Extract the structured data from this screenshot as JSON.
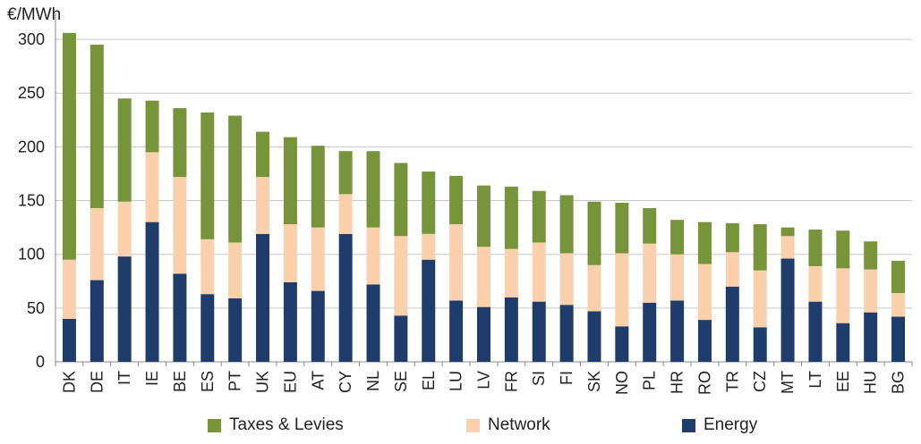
{
  "chart_data": {
    "type": "bar",
    "stacked": true,
    "title": "",
    "ylabel": "€/MWh",
    "xlabel": "",
    "ylim": [
      0,
      320
    ],
    "yticks": [
      0,
      50,
      100,
      150,
      200,
      250,
      300
    ],
    "grid": true,
    "legend_position": "bottom",
    "categories": [
      "DK",
      "DE",
      "IT",
      "IE",
      "BE",
      "ES",
      "PT",
      "UK",
      "EU",
      "AT",
      "CY",
      "NL",
      "SE",
      "EL",
      "LU",
      "LV",
      "FR",
      "SI",
      "FI",
      "SK",
      "NO",
      "PL",
      "HR",
      "RO",
      "TR",
      "CZ",
      "MT",
      "LT",
      "EE",
      "HU",
      "BG"
    ],
    "series": [
      {
        "name": "Energy",
        "color": "#1f3c6b",
        "values": [
          40,
          76,
          98,
          130,
          82,
          63,
          59,
          119,
          74,
          66,
          119,
          72,
          43,
          95,
          57,
          51,
          60,
          56,
          53,
          47,
          33,
          55,
          57,
          39,
          70,
          32,
          96,
          56,
          36,
          46,
          42
        ]
      },
      {
        "name": "Network",
        "color": "#fbd0ac",
        "values": [
          55,
          67,
          51,
          65,
          90,
          51,
          52,
          53,
          54,
          59,
          37,
          53,
          74,
          24,
          71,
          56,
          45,
          55,
          48,
          43,
          68,
          55,
          43,
          52,
          32,
          53,
          21,
          33,
          51,
          40,
          22
        ]
      },
      {
        "name": "Taxes & Levies",
        "color": "#77933c",
        "values": [
          211,
          152,
          96,
          48,
          64,
          118,
          118,
          42,
          81,
          76,
          40,
          71,
          68,
          58,
          45,
          57,
          58,
          48,
          54,
          59,
          47,
          33,
          32,
          39,
          27,
          43,
          8,
          34,
          35,
          26,
          30
        ]
      }
    ],
    "legend": [
      {
        "label": "Taxes & Levies",
        "color": "#77933c"
      },
      {
        "label": "Network",
        "color": "#fbd0ac"
      },
      {
        "label": "Energy",
        "color": "#1f3c6b"
      }
    ]
  }
}
